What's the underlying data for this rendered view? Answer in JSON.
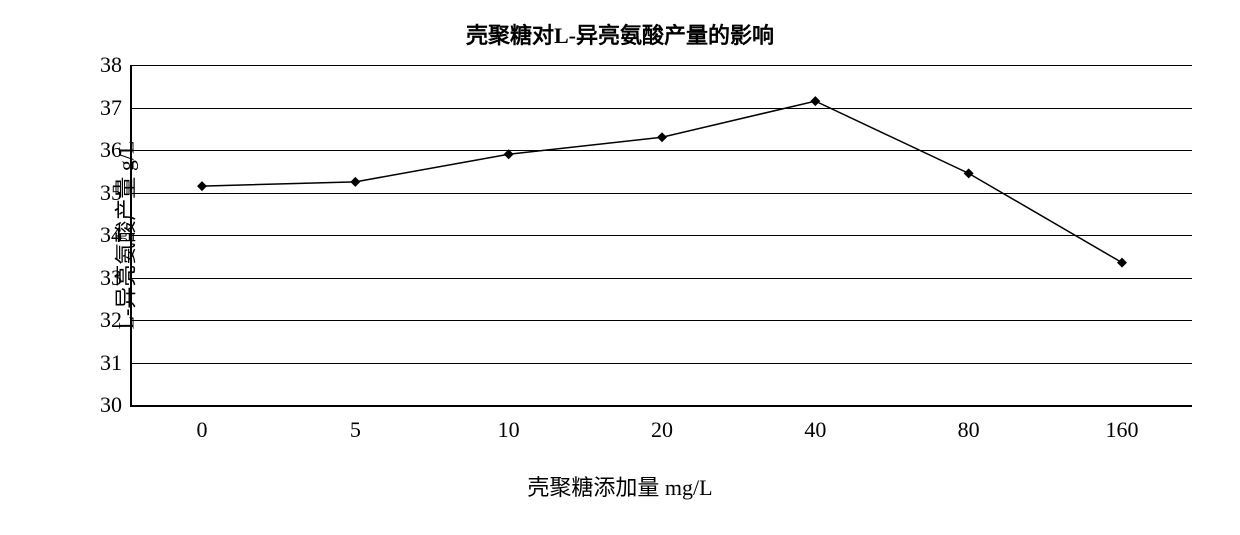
{
  "chart": {
    "type": "line",
    "title": "壳聚糖对L-异亮氨酸产量的影响",
    "title_fontsize": 22,
    "xlabel": "壳聚糖添加量 mg/L",
    "ylabel": "L-异亮氨酸产量 g/L",
    "label_fontsize": 22,
    "tick_fontsize": 22,
    "background_color": "#ffffff",
    "grid_color": "#000000",
    "axis_color": "#000000",
    "x_categories": [
      "0",
      "5",
      "10",
      "20",
      "40",
      "80",
      "160"
    ],
    "y_values": [
      35.15,
      35.25,
      35.9,
      36.3,
      37.15,
      35.45,
      33.35
    ],
    "ylim": [
      30,
      38
    ],
    "yticks": [
      30,
      31,
      32,
      33,
      34,
      35,
      36,
      37,
      38
    ],
    "line_color": "#000000",
    "marker_color": "#000000",
    "marker_style": "diamond",
    "marker_size": 10,
    "line_width": 1.5
  }
}
